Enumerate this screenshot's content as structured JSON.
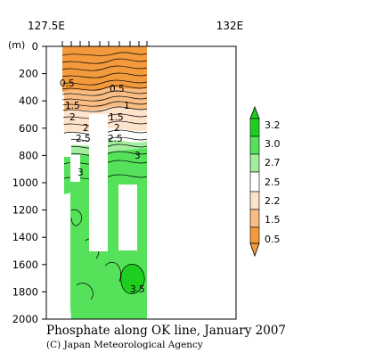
{
  "chart_data": {
    "type": "heatmap",
    "title": "Phosphate along OK line, January 2007",
    "credit": "(C) Japan Meteorological Agency",
    "x_axis": {
      "range_label_left": "127.5E",
      "range_label_right": "132E"
    },
    "y_axis": {
      "unit_label": "(m)",
      "ticks": [
        0,
        200,
        400,
        600,
        800,
        1000,
        1200,
        1400,
        1600,
        1800,
        2000
      ],
      "range": [
        0,
        2000
      ],
      "inverted": true
    },
    "colorbar": {
      "levels": [
        "3.2",
        "3.0",
        "2.7",
        "2.5",
        "2.2",
        "1.5",
        "0.5"
      ],
      "colors": [
        "#1fcf1f",
        "#55e25a",
        "#a3eda0",
        "#ffffff",
        "#fde2cc",
        "#f8bd84",
        "#f39a3c"
      ]
    },
    "contour_labels": [
      {
        "text": "0.5",
        "depth": 250
      },
      {
        "text": "0.5",
        "depth": 290
      },
      {
        "text": "1.5",
        "depth": 445
      },
      {
        "text": "1",
        "depth": 420
      },
      {
        "text": "2",
        "depth": 520
      },
      {
        "text": "1.5",
        "depth": 505
      },
      {
        "text": "2",
        "depth": 600
      },
      {
        "text": "2",
        "depth": 600
      },
      {
        "text": "2.5",
        "depth": 670
      },
      {
        "text": "2.5",
        "depth": 670
      },
      {
        "text": "3",
        "depth": 780
      },
      {
        "text": "3",
        "depth": 890
      },
      {
        "text": "3.5",
        "depth": 1770
      }
    ]
  }
}
